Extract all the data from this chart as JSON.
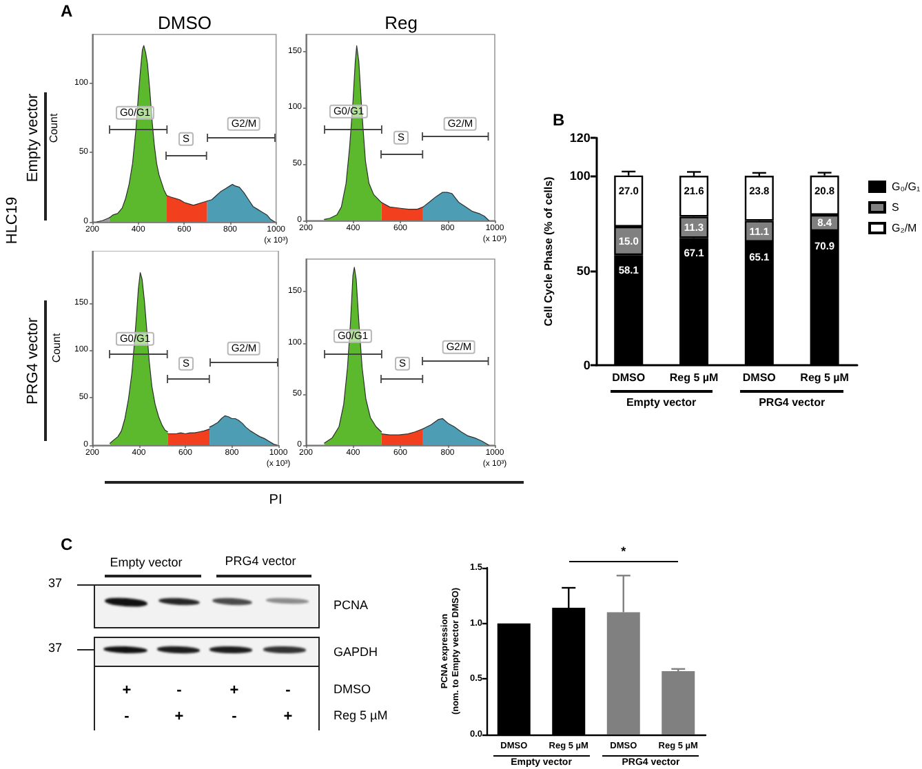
{
  "chart_data": [
    {
      "type": "area",
      "title": "DMSO",
      "ylabel": "Count",
      "xlabel": "(x 10³)",
      "xlim": [
        200,
        1000
      ],
      "xticks": [
        200,
        400,
        600,
        800,
        1000
      ],
      "ylim": [
        0,
        135
      ],
      "yticks": [
        0,
        50,
        100
      ],
      "series": [
        {
          "color": "#5cb82c",
          "x": [
            274,
            290,
            310,
            330,
            345,
            360,
            375,
            390,
            400,
            410,
            418,
            424,
            432,
            440,
            450,
            460,
            470,
            480,
            490,
            500,
            512,
            524
          ],
          "values": [
            3,
            5,
            6,
            10,
            17,
            27,
            42,
            67,
            90,
            110,
            124,
            127,
            122,
            114,
            95,
            73,
            55,
            42,
            34,
            29,
            23,
            19
          ]
        },
        {
          "color": "#f2401e",
          "x": [
            524,
            540,
            560,
            580,
            600,
            620,
            640,
            660,
            680,
            700
          ],
          "values": [
            19,
            18,
            17,
            16,
            14,
            13,
            12,
            13,
            14,
            15
          ]
        },
        {
          "color": "#4d9db5",
          "x": [
            700,
            720,
            740,
            760,
            780,
            800,
            810,
            820,
            840,
            860,
            880,
            900,
            920,
            940,
            960,
            975,
            994
          ],
          "values": [
            15,
            16,
            19,
            22,
            24,
            26,
            27,
            26,
            25,
            21,
            16,
            11,
            9,
            7,
            5,
            2,
            0
          ]
        },
        {
          "color": "#9a9a9a",
          "x": [
            220,
            245,
            274
          ],
          "values": [
            0,
            1,
            3
          ]
        }
      ],
      "annotations": [
        "A",
        "HLC19",
        "Empty vector",
        "G0/G1",
        "S",
        "G2/M"
      ]
    },
    {
      "type": "area",
      "title": "Reg",
      "xlabel": "(x 10³)",
      "xlim": [
        200,
        1000
      ],
      "xticks": [
        200,
        400,
        600,
        800,
        1000
      ],
      "ylim": [
        0,
        165
      ],
      "yticks": [
        0,
        50,
        100,
        150
      ],
      "series": [
        {
          "color": "#5cb82c",
          "x": [
            278,
            301,
            331,
            350,
            370,
            385,
            399,
            409,
            415,
            424,
            438,
            452,
            467,
            487,
            520
          ],
          "values": [
            1,
            2,
            5,
            12,
            33,
            65,
            105,
            141,
            155,
            141,
            93,
            53,
            33,
            23,
            16
          ]
        },
        {
          "color": "#f2401e",
          "x": [
            520,
            555,
            594,
            633,
            672,
            696
          ],
          "values": [
            16,
            12,
            11,
            10,
            10,
            12
          ]
        },
        {
          "color": "#4d9db5",
          "x": [
            696,
            721,
            750,
            779,
            799,
            818,
            848,
            877,
            906,
            936,
            955,
            975
          ],
          "values": [
            12,
            16,
            21,
            25,
            25,
            24,
            16,
            12,
            8,
            6,
            4,
            0
          ]
        }
      ],
      "annotations": [
        "G0/G1",
        "S",
        "G2/M"
      ]
    },
    {
      "type": "area",
      "ylabel": "Count",
      "xlabel": "(x 10³)",
      "xlim": [
        200,
        1000
      ],
      "xticks": [
        200,
        400,
        600,
        800,
        1000
      ],
      "ylim": [
        0,
        205
      ],
      "yticks": [
        0,
        50,
        100,
        150
      ],
      "series": [
        {
          "color": "#5cb82c",
          "x": [
            276,
            290,
            310,
            325,
            340,
            355,
            370,
            380,
            390,
            398,
            406,
            414,
            424,
            434,
            444,
            456,
            470,
            485,
            500,
            512,
            524
          ],
          "values": [
            2,
            5,
            9,
            15,
            28,
            48,
            76,
            105,
            137,
            165,
            182,
            175,
            152,
            122,
            90,
            62,
            43,
            30,
            21,
            16,
            14
          ]
        },
        {
          "color": "#f2401e",
          "x": [
            524,
            540,
            560,
            580,
            600,
            620,
            640,
            660,
            680,
            704
          ],
          "values": [
            12,
            12,
            12,
            13,
            12,
            13,
            13,
            14,
            15,
            17
          ]
        },
        {
          "color": "#4d9db5",
          "x": [
            704,
            720,
            740,
            755,
            770,
            785,
            800,
            815,
            830,
            845,
            860,
            880,
            900,
            920,
            940,
            960,
            980,
            994
          ],
          "values": [
            19,
            21,
            24,
            28,
            31,
            30,
            28,
            28,
            26,
            23,
            19,
            15,
            12,
            9,
            7,
            4,
            1,
            0
          ]
        }
      ],
      "annotations": [
        "PRG4 vector",
        "PI",
        "G0/G1",
        "S",
        "G2/M"
      ]
    },
    {
      "type": "area",
      "xlabel": "(x 10³)",
      "xlim": [
        200,
        1000
      ],
      "xticks": [
        200,
        400,
        600,
        800,
        1000
      ],
      "ylim": [
        0,
        182
      ],
      "yticks": [
        0,
        50,
        100,
        150
      ],
      "series": [
        {
          "color": "#5cb82c",
          "x": [
            278,
            311,
            340,
            360,
            376,
            389,
            399,
            405,
            413,
            424,
            438,
            454,
            473,
            497,
            520
          ],
          "values": [
            2,
            7,
            18,
            40,
            76,
            121,
            166,
            174,
            162,
            121,
            76,
            45,
            27,
            18,
            13
          ]
        },
        {
          "color": "#f2401e",
          "x": [
            520,
            555,
            594,
            633,
            662,
            696
          ],
          "values": [
            11,
            10,
            10,
            11,
            13,
            16
          ]
        },
        {
          "color": "#4d9db5",
          "x": [
            696,
            731,
            760,
            779,
            804,
            828,
            858,
            887,
            916,
            945,
            975
          ],
          "values": [
            16,
            20,
            25,
            26,
            21,
            18,
            13,
            9,
            7,
            4,
            0
          ]
        }
      ],
      "annotations": [
        "G0/G1",
        "S",
        "G2/M"
      ]
    },
    {
      "type": "bar",
      "title": "B",
      "ylabel": "Cell Cycle Phase (% of cells)",
      "categories": [
        "DMSO",
        "Reg 5 µM",
        "DMSO",
        "Reg 5 µM"
      ],
      "stacked": true,
      "ylim": [
        0,
        120
      ],
      "yticks": [
        0,
        50,
        100,
        120
      ],
      "legend": "right",
      "series": [
        {
          "name": "G₀/G₁",
          "color": "#000000",
          "values": [
            58.1,
            67.1,
            65.1,
            70.9
          ],
          "value_labels": [
            "58.1",
            "67.1",
            "65.1",
            "70.9"
          ],
          "errors": [
            [
              58.1,
              61.3
            ],
            [
              67.1,
              68.8
            ],
            [
              65.1,
              67.8
            ],
            [
              70.9,
              71.9
            ]
          ]
        },
        {
          "name": "S",
          "color": "#808080",
          "values": [
            15.0,
            11.3,
            11.1,
            8.4
          ],
          "value_labels": [
            "15.0",
            "11.3",
            "11.1",
            "8.4"
          ],
          "errors": [
            [
              73.1,
              74.2
            ],
            [
              78.4,
              79.3
            ],
            [
              76.2,
              77.3
            ],
            [
              79.3,
              79.8
            ]
          ]
        },
        {
          "name": "G₂/M",
          "color": "#ffffff",
          "values": [
            27.0,
            21.6,
            23.8,
            20.8
          ],
          "value_labels": [
            "27.0",
            "21.6",
            "23.8",
            "20.8"
          ],
          "errors": [
            [
              100.1,
              102.2
            ],
            [
              100.0,
              102.0
            ],
            [
              100.0,
              101.5
            ],
            [
              100.1,
              101.6
            ]
          ]
        }
      ],
      "annotations": [
        "Empty vector",
        "PRG4 vector"
      ]
    },
    {
      "type": "other",
      "title": "C",
      "annotations": [
        "Empty vector",
        "PRG4 vector",
        "37",
        "PCNA",
        "37",
        "GAPDH",
        "+",
        "-",
        "+",
        "-",
        "DMSO",
        "-",
        "+",
        "-",
        "+",
        "Reg 5 µM"
      ]
    },
    {
      "type": "bar",
      "ylabel": "PCNA expression\n(nom. to Empty vector DMSO)",
      "categories": [
        "DMSO",
        "Reg 5 µM",
        "DMSO",
        "Reg 5 µM"
      ],
      "values": [
        1.0,
        1.14,
        1.1,
        0.57
      ],
      "colors": [
        "#000000",
        "#000000",
        "#808080",
        "#808080"
      ],
      "errors": [
        null,
        [
          1.14,
          1.32
        ],
        [
          1.1,
          1.43
        ],
        [
          0.57,
          0.59
        ]
      ],
      "ylim": [
        0,
        1.5
      ],
      "yticks": [
        {
          "value": 0,
          "label": "0.0"
        },
        0.5,
        {
          "value": 1,
          "label": "1.0"
        },
        1.5
      ],
      "annotations": [
        "*",
        "Empty vector",
        "PRG4 vector"
      ]
    }
  ]
}
